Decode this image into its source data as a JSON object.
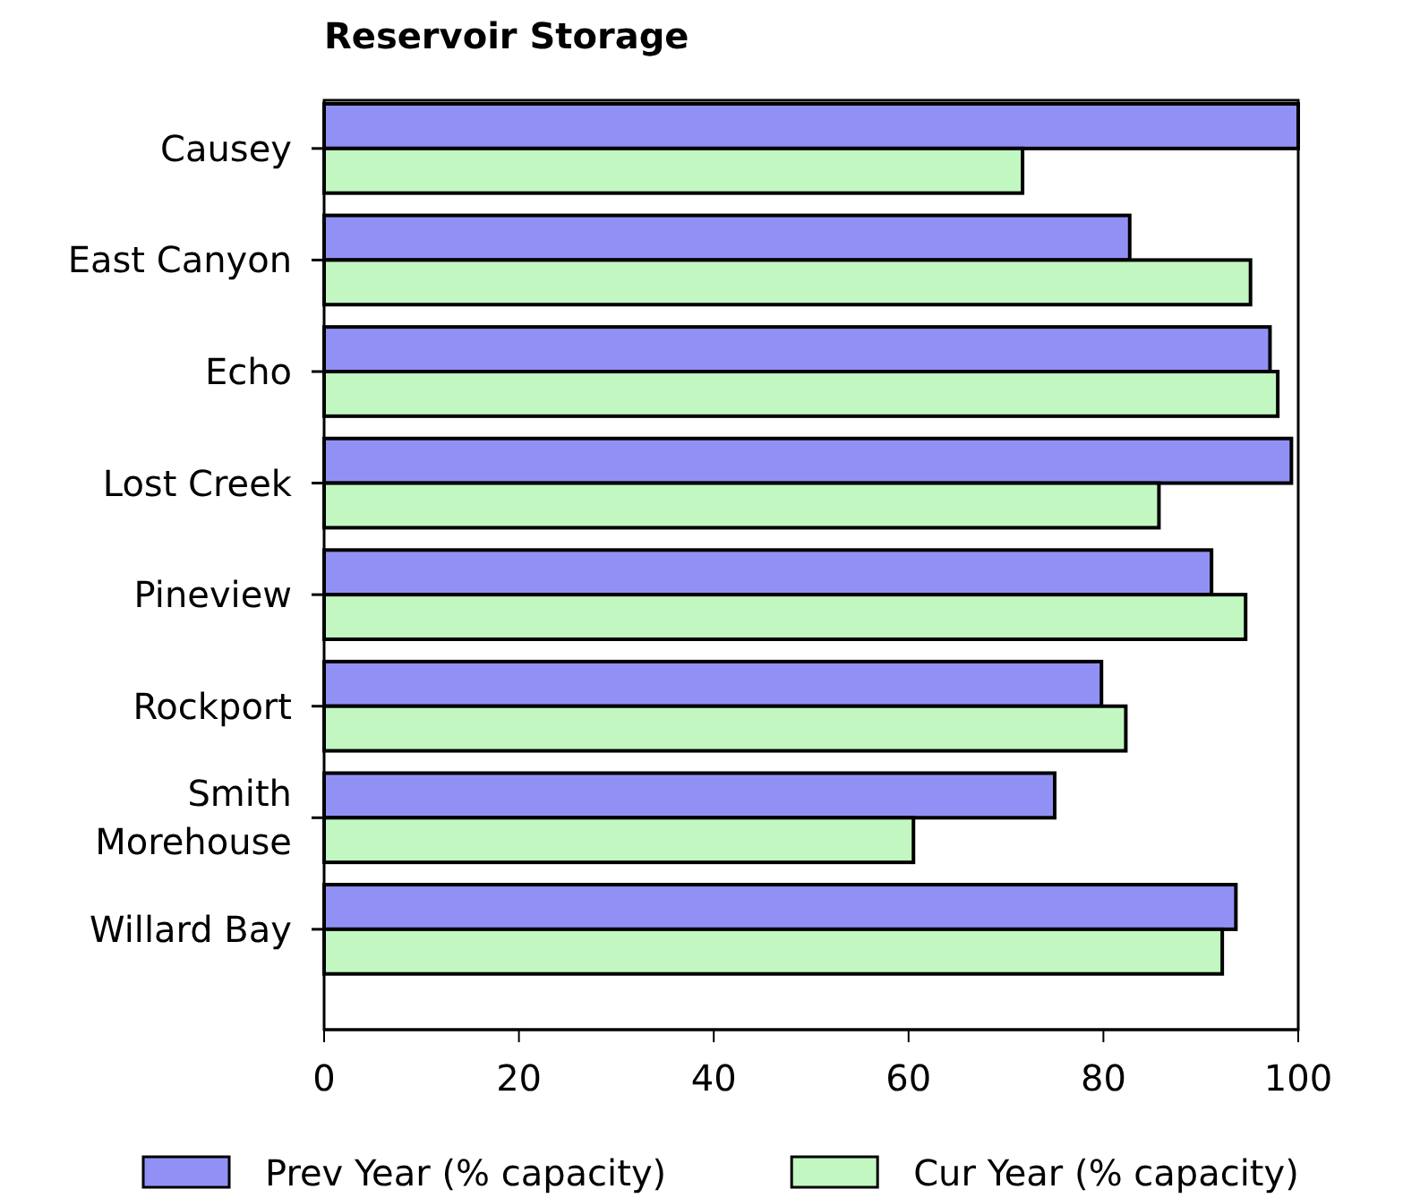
{
  "chart_data": {
    "type": "bar",
    "orientation": "horizontal",
    "title": "Reservoir Storage",
    "categories": [
      "Causey",
      "East Canyon",
      "Echo",
      "Lost Creek",
      "Pineview",
      "Rockport",
      "Smith\nMorehouse",
      "Willard Bay"
    ],
    "series": [
      {
        "name": "Prev Year (% capacity)",
        "color": "#9191f5",
        "values": [
          100,
          82.7,
          97.1,
          99.3,
          91.1,
          79.8,
          75.0,
          93.6
        ]
      },
      {
        "name": "Cur Year (% capacity)",
        "color": "#c2f7c2",
        "values": [
          71.7,
          95.1,
          97.9,
          85.7,
          94.6,
          82.3,
          60.5,
          92.2
        ]
      }
    ],
    "xlim": [
      0,
      100
    ],
    "xticks": [
      0,
      20,
      40,
      60,
      80,
      100
    ],
    "grid": false,
    "legend": "bottom"
  }
}
